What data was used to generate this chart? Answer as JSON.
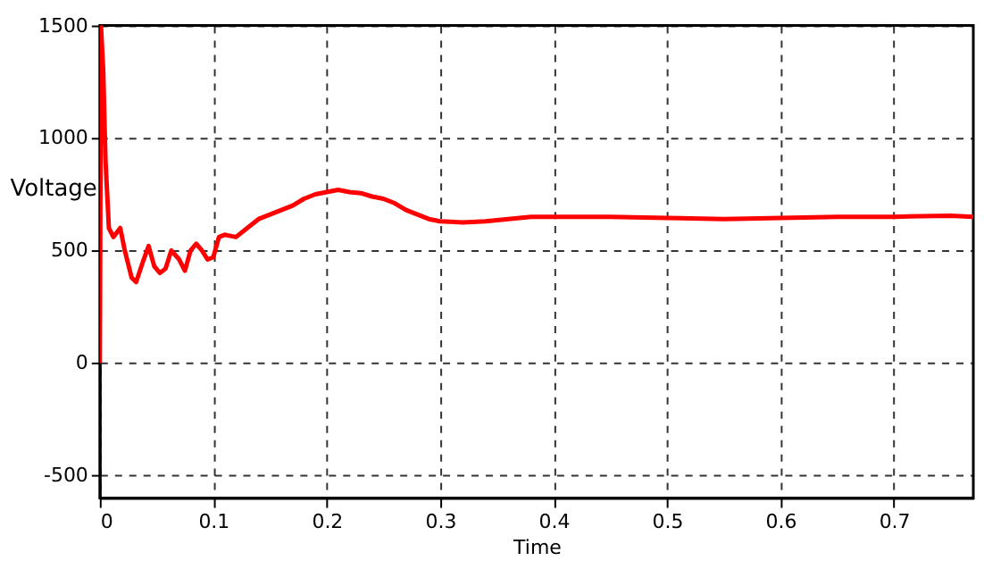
{
  "chart_data": {
    "type": "line",
    "xlabel": "Time",
    "ylabel": "Voltage",
    "xlim": [
      0,
      0.77
    ],
    "ylim": [
      -600,
      1500
    ],
    "xticks": [
      0,
      0.1,
      0.2,
      0.3,
      0.4,
      0.5,
      0.6,
      0.7
    ],
    "yticks": [
      -500,
      0,
      500,
      1000,
      1500
    ],
    "grid": true,
    "line_style": "solid",
    "marker": "none",
    "series": [
      {
        "color": "#ff0000",
        "x": [
          0,
          0.001,
          0.003,
          0.005,
          0.008,
          0.012,
          0.018,
          0.022,
          0.028,
          0.032,
          0.038,
          0.043,
          0.048,
          0.053,
          0.058,
          0.063,
          0.07,
          0.075,
          0.08,
          0.085,
          0.09,
          0.095,
          0.1,
          0.105,
          0.11,
          0.12,
          0.13,
          0.14,
          0.15,
          0.16,
          0.17,
          0.18,
          0.19,
          0.2,
          0.21,
          0.22,
          0.23,
          0.24,
          0.25,
          0.26,
          0.27,
          0.28,
          0.29,
          0.3,
          0.32,
          0.34,
          0.36,
          0.38,
          0.4,
          0.45,
          0.5,
          0.55,
          0.6,
          0.65,
          0.7,
          0.75,
          0.77
        ],
        "values": [
          0,
          1500,
          1300,
          900,
          600,
          560,
          600,
          500,
          380,
          360,
          450,
          520,
          430,
          400,
          420,
          500,
          460,
          410,
          500,
          530,
          500,
          460,
          470,
          560,
          570,
          560,
          600,
          640,
          660,
          680,
          700,
          730,
          750,
          760,
          770,
          760,
          755,
          740,
          730,
          710,
          680,
          660,
          640,
          630,
          625,
          630,
          640,
          650,
          650,
          650,
          645,
          640,
          645,
          650,
          650,
          655,
          650
        ]
      }
    ]
  }
}
